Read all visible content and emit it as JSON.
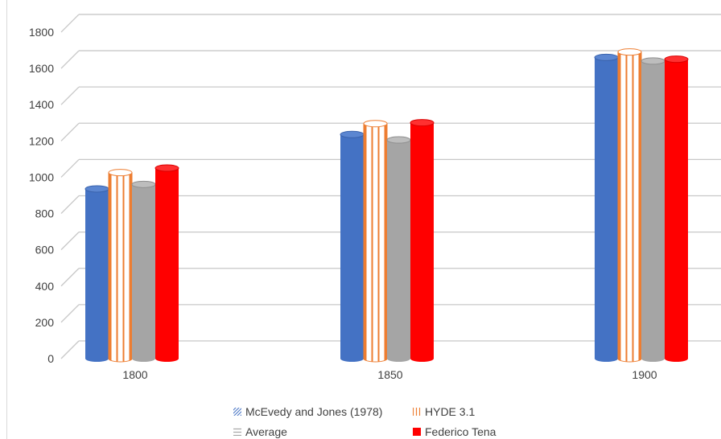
{
  "chart_data": {
    "type": "bar",
    "categories": [
      "1800",
      "1850",
      "1900"
    ],
    "series": [
      {
        "name": "McEvedy and Jones (1978)",
        "values": [
          900,
          1200,
          1625
        ],
        "color": "#4472C4"
      },
      {
        "name": "HYDE 3.1",
        "values": [
          990,
          1260,
          1655
        ],
        "color": "#ED7D31"
      },
      {
        "name": "Average",
        "values": [
          925,
          1170,
          1605
        ],
        "color": "#A5A5A5"
      },
      {
        "name": "Federico Tena",
        "values": [
          1015,
          1265,
          1615
        ],
        "color": "#FF0000"
      }
    ],
    "ylim": [
      0,
      1800
    ],
    "yticks": [
      "0",
      "200",
      "400",
      "600",
      "800",
      "1000",
      "1200",
      "1400",
      "1600",
      "1800"
    ],
    "grid": true,
    "legend_position": "bottom",
    "title": "",
    "xlabel": "",
    "ylabel": ""
  }
}
